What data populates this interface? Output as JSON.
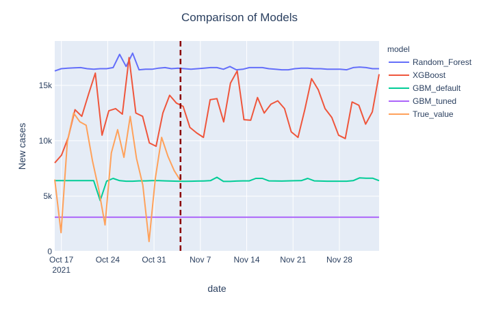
{
  "chart_data": {
    "type": "line",
    "title": "Comparison of Models",
    "xlabel": "date",
    "ylabel": "New cases",
    "legend_title": "model",
    "legend_position": "top-right",
    "grid": true,
    "x_range": [
      "2021-10-16",
      "2021-12-04"
    ],
    "ylim": [
      0,
      19000
    ],
    "y_ticks": [
      {
        "value": 0,
        "label": "0"
      },
      {
        "value": 5000,
        "label": "5k"
      },
      {
        "value": 10000,
        "label": "10k"
      },
      {
        "value": 15000,
        "label": "15k"
      }
    ],
    "x_ticks": [
      {
        "date": "2021-10-17",
        "label": "Oct 17",
        "sublabel": "2021"
      },
      {
        "date": "2021-10-24",
        "label": "Oct 24",
        "sublabel": ""
      },
      {
        "date": "2021-10-31",
        "label": "Oct 31",
        "sublabel": ""
      },
      {
        "date": "2021-11-07",
        "label": "Nov 7",
        "sublabel": ""
      },
      {
        "date": "2021-11-14",
        "label": "Nov 14",
        "sublabel": ""
      },
      {
        "date": "2021-11-21",
        "label": "Nov 21",
        "sublabel": ""
      },
      {
        "date": "2021-11-28",
        "label": "Nov 28",
        "sublabel": ""
      }
    ],
    "vline": {
      "date": "2021-11-04",
      "color": "#8b0000",
      "dash": true
    },
    "series": [
      {
        "name": "Random_Forest",
        "color": "#636efa",
        "start": "2021-10-16",
        "end": "2021-12-04",
        "values": [
          16300,
          16500,
          16550,
          16580,
          16600,
          16500,
          16450,
          16500,
          16500,
          16600,
          17800,
          16700,
          17900,
          16400,
          16450,
          16450,
          16550,
          16600,
          16500,
          16550,
          16500,
          16450,
          16500,
          16550,
          16600,
          16600,
          16450,
          16700,
          16400,
          16450,
          16600,
          16600,
          16600,
          16500,
          16450,
          16400,
          16400,
          16500,
          16550,
          16550,
          16500,
          16500,
          16450,
          16450,
          16450,
          16400,
          16600,
          16650,
          16600,
          16500,
          16500
        ]
      },
      {
        "name": "XGBoost",
        "color": "#ef553b",
        "start": "2021-10-16",
        "end": "2021-12-04",
        "values": [
          8000,
          8700,
          10300,
          12800,
          12200,
          14200,
          16100,
          10500,
          12700,
          12900,
          12400,
          17500,
          12500,
          12200,
          9800,
          9500,
          12500,
          14100,
          13400,
          13100,
          11200,
          10700,
          10300,
          13700,
          13800,
          11700,
          15200,
          16300,
          11900,
          11850,
          13900,
          12500,
          13300,
          13600,
          12900,
          10800,
          10300,
          12800,
          15600,
          14600,
          12900,
          12100,
          10500,
          10200,
          13500,
          13200,
          11500,
          12600,
          16000
        ]
      },
      {
        "name": "GBM_default",
        "color": "#00cc96",
        "start": "2021-10-16",
        "end": "2021-12-04",
        "values": [
          6400,
          6400,
          6400,
          6400,
          6400,
          6400,
          6400,
          4600,
          6350,
          6600,
          6400,
          6350,
          6350,
          6380,
          6380,
          6400,
          6400,
          6380,
          6360,
          6350,
          6340,
          6350,
          6360,
          6370,
          6400,
          6700,
          6330,
          6330,
          6360,
          6380,
          6380,
          6600,
          6600,
          6380,
          6370,
          6360,
          6380,
          6390,
          6400,
          6600,
          6380,
          6360,
          6350,
          6350,
          6350,
          6350,
          6400,
          6650,
          6620,
          6620,
          6400
        ]
      },
      {
        "name": "GBM_tuned",
        "color": "#ab63fa",
        "start": "2021-10-16",
        "end": "2021-12-04",
        "values": [
          3100,
          3100
        ]
      },
      {
        "name": "True_value",
        "color": "#ffa15a",
        "start": "2021-10-16",
        "end": "2021-11-04",
        "values": [
          6500,
          1700,
          9900,
          12500,
          11700,
          11400,
          8200,
          5600,
          2400,
          8900,
          11000,
          8500,
          12200,
          8400,
          6000,
          900,
          6600,
          10300,
          8600,
          7300,
          6400
        ]
      }
    ]
  }
}
